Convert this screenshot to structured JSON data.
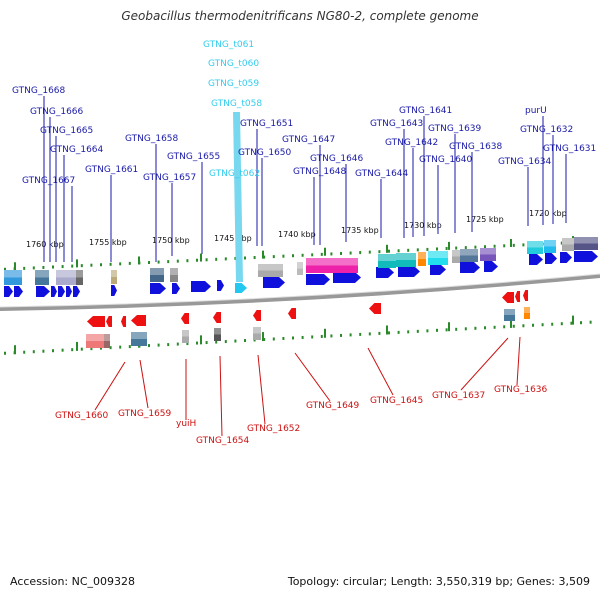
{
  "title": "Geobacillus thermodenitrificans NG80-2, complete genome",
  "footer": {
    "accession": "Accession: NC_009328",
    "summary": "Topology: circular; Length: 3,550,319 bp; Genes: 3,509"
  },
  "colors": {
    "forward_label": "#1a1aa8",
    "trna_label": "#33ccee",
    "reverse_label": "#cc1111",
    "forward_gene": "#1010dd",
    "reverse_gene": "#ee1111",
    "tick": "#2a8a2a",
    "backbone": "#999999"
  },
  "scale_labels": [
    "1760 kbp",
    "1755 kbp",
    "1750 kbp",
    "1745 kbp",
    "1740 kbp",
    "1735 kbp",
    "1730 kbp",
    "1725 kbp",
    "1720 kbp"
  ],
  "forward_labels": [
    "GTNG_1668",
    "GTNG_1666",
    "GTNG_1665",
    "GTNG_1664",
    "GTNG_1667",
    "GTNG_1661",
    "GTNG_1658",
    "GTNG_1657",
    "GTNG_1655",
    "GTNG_1651",
    "GTNG_1650",
    "GTNG_1648",
    "GTNG_1647",
    "GTNG_1646",
    "GTNG_1644",
    "GTNG_1643",
    "GTNG_1642",
    "GTNG_1641",
    "GTNG_1640",
    "GTNG_1639",
    "GTNG_1638",
    "GTNG_1634",
    "purU",
    "GTNG_1632",
    "GTNG_1631"
  ],
  "trna_labels": [
    "GTNG_t061",
    "GTNG_t060",
    "GTNG_t059",
    "GTNG_t058",
    "GTNG_t062"
  ],
  "reverse_labels": [
    "GTNG_1660",
    "GTNG_1659",
    "yuiH",
    "GTNG_1654",
    "GTNG_1652",
    "GTNG_1649",
    "GTNG_1645",
    "GTNG_1637",
    "GTNG_1636"
  ]
}
